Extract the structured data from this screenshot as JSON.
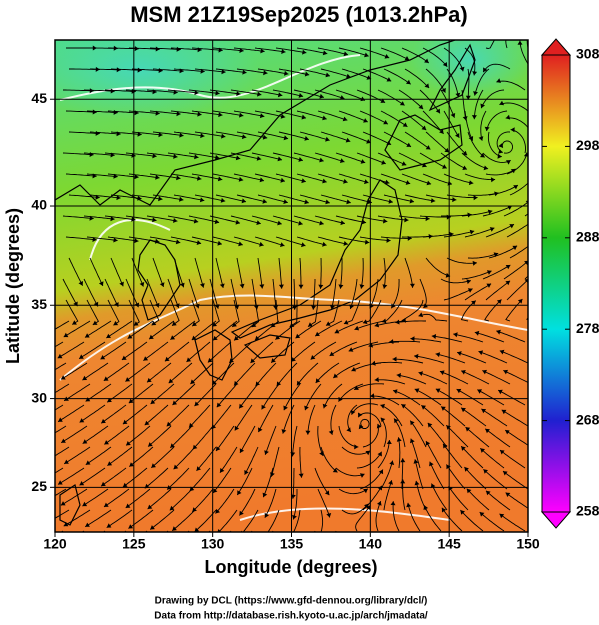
{
  "title": "MSM 21Z19Sep2025 (1013.2hPa)",
  "x_axis": {
    "label": "Longitude (degrees)",
    "lim": [
      120,
      150
    ],
    "ticks": [
      120,
      125,
      130,
      135,
      140,
      145,
      150
    ]
  },
  "y_axis": {
    "label": "Latitude  (degrees)",
    "lim": [
      22.4,
      47.6
    ],
    "ticks": [
      25,
      30,
      35,
      40,
      45
    ],
    "projection": "mercator"
  },
  "grid": true,
  "colorbar": {
    "lim": [
      258,
      308
    ],
    "ticks": [
      258,
      268,
      278,
      288,
      298,
      308
    ],
    "colors": [
      "#ff00ff",
      "#2020d0",
      "#00e0e0",
      "#20c020",
      "#f0f020",
      "#e02020"
    ]
  },
  "credits": [
    "Drawing by DCL (https://www.gfd-dennou.org/library/dcl/)",
    "Data from http://database.rish.kyoto-u.ac.jp/arch/jmadata/"
  ]
}
